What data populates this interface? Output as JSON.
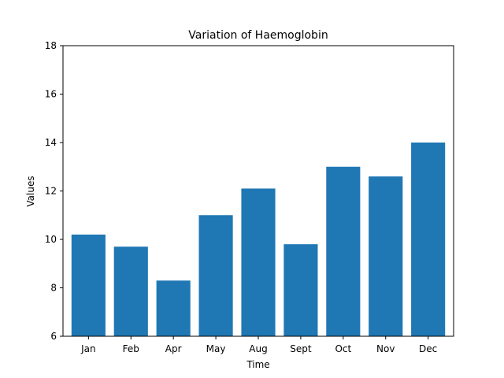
{
  "chart_data": {
    "type": "bar",
    "title": "Variation of Haemoglobin",
    "xlabel": "Time",
    "ylabel": "Values",
    "categories": [
      "Jan",
      "Feb",
      "Apr",
      "May",
      "Aug",
      "Sept",
      "Oct",
      "Nov",
      "Dec"
    ],
    "values": [
      10.2,
      9.7,
      8.3,
      11.0,
      12.1,
      9.8,
      13.0,
      12.6,
      14.0
    ],
    "ylim": [
      6,
      18
    ],
    "yticks": [
      6,
      8,
      10,
      12,
      14,
      16,
      18
    ],
    "grid": false,
    "bar_color": "#1f77b4"
  }
}
